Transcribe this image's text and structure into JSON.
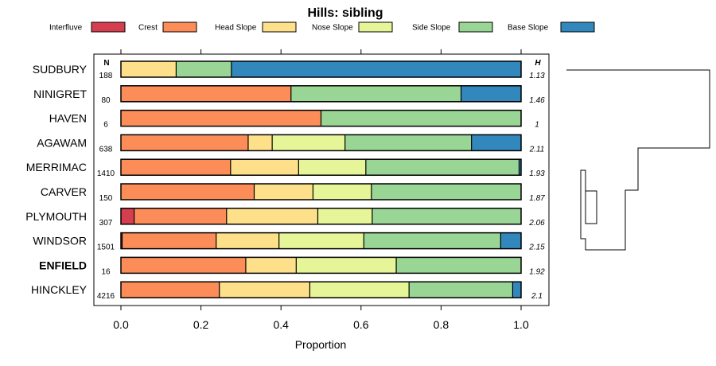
{
  "chart_data": {
    "type": "bar",
    "orientation": "horizontal-stacked",
    "title": "Hills: sibling",
    "xlabel": "Proportion",
    "ylabel": "",
    "xlim": [
      0,
      1
    ],
    "x_ticks": [
      "0.0",
      "0.2",
      "0.4",
      "0.6",
      "0.8",
      "1.0"
    ],
    "x_tick_values": [
      0,
      0.2,
      0.4,
      0.6,
      0.8,
      1.0
    ],
    "n_header": "N",
    "h_header": "H",
    "highlight_category": "ENFIELD",
    "legend": [
      {
        "name": "Interfluve",
        "color": "#D53E4F"
      },
      {
        "name": "Crest",
        "color": "#FC8D59"
      },
      {
        "name": "Head Slope",
        "color": "#FEE08B"
      },
      {
        "name": "Nose Slope",
        "color": "#E6F598"
      },
      {
        "name": "Side Slope",
        "color": "#99D594"
      },
      {
        "name": "Base Slope",
        "color": "#3288BD"
      }
    ],
    "categories": [
      "SUDBURY",
      "NINIGRET",
      "HAVEN",
      "AGAWAM",
      "MERRIMAC",
      "CARVER",
      "PLYMOUTH",
      "WINDSOR",
      "ENFIELD",
      "HINCKLEY"
    ],
    "N": [
      "188",
      "80",
      "6",
      "638",
      "1410",
      "150",
      "307",
      "1501",
      "16",
      "4216"
    ],
    "H": [
      "1.13",
      "1.46",
      "1",
      "2.11",
      "1.93",
      "1.87",
      "2.06",
      "2.15",
      "1.92",
      "2.1"
    ],
    "series": [
      {
        "name": "Interfluve",
        "values": [
          0,
          0,
          0,
          0,
          0,
          0,
          0.033,
          0.003,
          0,
          0
        ]
      },
      {
        "name": "Crest",
        "values": [
          0,
          0.425,
          0.5,
          0.318,
          0.274,
          0.333,
          0.231,
          0.235,
          0.312,
          0.246
        ]
      },
      {
        "name": "Head Slope",
        "values": [
          0.138,
          0,
          0,
          0.06,
          0.17,
          0.147,
          0.228,
          0.157,
          0.126,
          0.226
        ]
      },
      {
        "name": "Nose Slope",
        "values": [
          0,
          0,
          0,
          0.182,
          0.168,
          0.146,
          0.136,
          0.212,
          0.25,
          0.248
        ]
      },
      {
        "name": "Side Slope",
        "values": [
          0.138,
          0.425,
          0.5,
          0.316,
          0.383,
          0.374,
          0.372,
          0.342,
          0.312,
          0.259
        ]
      },
      {
        "name": "Base Slope",
        "values": [
          0.724,
          0.15,
          0,
          0.124,
          0.005,
          0,
          0,
          0.051,
          0,
          0.021
        ]
      }
    ]
  }
}
